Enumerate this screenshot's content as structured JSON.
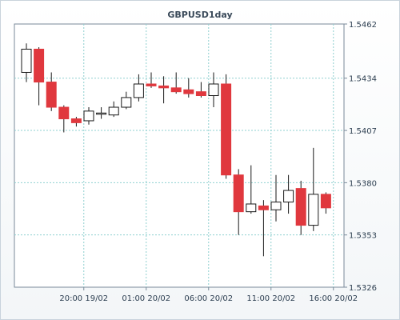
{
  "chart_data": {
    "type": "candlestick",
    "title": "GBPUSD1day",
    "xlabel": "",
    "ylabel": "",
    "ylim": [
      1.5326,
      1.5462
    ],
    "y_ticks": [
      "1.5462",
      "1.5434",
      "1.5407",
      "1.5380",
      "1.5353",
      "1.5326"
    ],
    "x_ticks": [
      {
        "label": "20:00 19/02",
        "index": 4.6
      },
      {
        "label": "01:00 20/02",
        "index": 9.6
      },
      {
        "label": "06:00 20/02",
        "index": 14.6
      },
      {
        "label": "11:00 20/02",
        "index": 19.6
      },
      {
        "label": "16:00 20/02",
        "index": 24.6
      }
    ],
    "grid": true,
    "colors": {
      "up": "#ffffff",
      "down": "#e0383e",
      "grid": "#8fd0d0",
      "axis": "#7a8a9a"
    },
    "candles": [
      {
        "open": 1.5437,
        "high": 1.5452,
        "low": 1.5432,
        "close": 1.5449
      },
      {
        "open": 1.5449,
        "high": 1.545,
        "low": 1.542,
        "close": 1.5432
      },
      {
        "open": 1.5432,
        "high": 1.5437,
        "low": 1.5417,
        "close": 1.5419
      },
      {
        "open": 1.5419,
        "high": 1.542,
        "low": 1.5406,
        "close": 1.5413
      },
      {
        "open": 1.5413,
        "high": 1.5414,
        "low": 1.5409,
        "close": 1.5411
      },
      {
        "open": 1.5412,
        "high": 1.5419,
        "low": 1.541,
        "close": 1.5417
      },
      {
        "open": 1.5416,
        "high": 1.5419,
        "low": 1.5413,
        "close": 1.5416
      },
      {
        "open": 1.5415,
        "high": 1.5422,
        "low": 1.5414,
        "close": 1.5419
      },
      {
        "open": 1.5419,
        "high": 1.5427,
        "low": 1.5418,
        "close": 1.5424
      },
      {
        "open": 1.5424,
        "high": 1.5436,
        "low": 1.5422,
        "close": 1.5431
      },
      {
        "open": 1.5431,
        "high": 1.5437,
        "low": 1.5429,
        "close": 1.543
      },
      {
        "open": 1.543,
        "high": 1.5435,
        "low": 1.5421,
        "close": 1.5429
      },
      {
        "open": 1.5429,
        "high": 1.5437,
        "low": 1.5426,
        "close": 1.5427
      },
      {
        "open": 1.5428,
        "high": 1.5434,
        "low": 1.5424,
        "close": 1.5426
      },
      {
        "open": 1.5427,
        "high": 1.5432,
        "low": 1.5424,
        "close": 1.5425
      },
      {
        "open": 1.5425,
        "high": 1.5437,
        "low": 1.5419,
        "close": 1.5431
      },
      {
        "open": 1.5431,
        "high": 1.5436,
        "low": 1.5382,
        "close": 1.5384
      },
      {
        "open": 1.5384,
        "high": 1.5387,
        "low": 1.5353,
        "close": 1.5365
      },
      {
        "open": 1.5365,
        "high": 1.5389,
        "low": 1.5364,
        "close": 1.5369
      },
      {
        "open": 1.5368,
        "high": 1.5371,
        "low": 1.5342,
        "close": 1.5366
      },
      {
        "open": 1.5366,
        "high": 1.5384,
        "low": 1.536,
        "close": 1.537
      },
      {
        "open": 1.537,
        "high": 1.5384,
        "low": 1.5364,
        "close": 1.5376
      },
      {
        "open": 1.5377,
        "high": 1.5381,
        "low": 1.5353,
        "close": 1.5358
      },
      {
        "open": 1.5358,
        "high": 1.5398,
        "low": 1.5355,
        "close": 1.5374
      },
      {
        "open": 1.5374,
        "high": 1.5375,
        "low": 1.5364,
        "close": 1.5367
      }
    ]
  }
}
